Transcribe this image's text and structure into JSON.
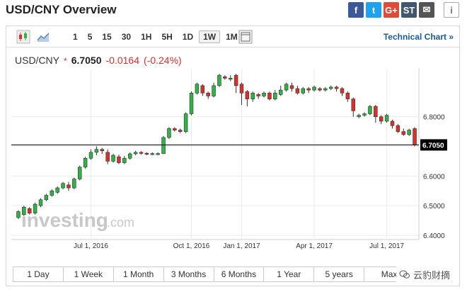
{
  "header": {
    "title": "USD/CNY Overview"
  },
  "share": [
    {
      "name": "facebook-icon",
      "glyph": "f",
      "color": "#3b5998"
    },
    {
      "name": "twitter-icon",
      "glyph": "t",
      "color": "#1da1f2"
    },
    {
      "name": "google-plus-icon",
      "glyph": "G+",
      "color": "#dd4b39"
    },
    {
      "name": "stocktwits-icon",
      "glyph": "ST",
      "color": "#40576d"
    },
    {
      "name": "email-icon",
      "glyph": "✉",
      "color": "#555555"
    },
    {
      "name": "info-icon",
      "glyph": "i",
      "color": "#777777"
    }
  ],
  "toolbar": {
    "periods": [
      "1",
      "5",
      "15",
      "30",
      "1H",
      "5H",
      "1D",
      "1W",
      "1M"
    ],
    "active_period": "1W",
    "technical_link": "Technical Chart »"
  },
  "quote": {
    "pair": "USD/CNY",
    "marker": "*",
    "price": "6.7050",
    "change": "-0.0164",
    "change_pct": "(-0.24%)"
  },
  "ranges": [
    "1 Day",
    "1 Week",
    "1 Month",
    "3 Months",
    "6 Months",
    "1 Year",
    "5 years",
    "Max"
  ],
  "watermark": {
    "text": "云豹财摘"
  },
  "logo": {
    "text": "investing",
    "suffix": ".com"
  },
  "colors": {
    "up": "#2fb344",
    "down": "#d9302c",
    "price_label_bg": "#000000"
  },
  "chart_data": {
    "type": "candlestick",
    "x_tick_labels": [
      "Jul 1, 2016",
      "Oct 1, 2016",
      "Jan 1, 2017",
      "Apr 1, 2017",
      "Jul 1, 2017"
    ],
    "y_tick_labels": [
      "6.8000",
      "6.7000",
      "6.6000",
      "6.5000",
      "6.4000"
    ],
    "ylim": [
      6.4,
      6.95
    ],
    "current_price": 6.705,
    "current_label": "6.7050",
    "candles": [
      [
        6.46,
        6.48,
        6.455,
        6.485
      ],
      [
        6.47,
        6.495,
        6.465,
        6.5
      ],
      [
        6.49,
        6.475,
        6.47,
        6.495
      ],
      [
        6.475,
        6.505,
        6.47,
        6.51
      ],
      [
        6.5,
        6.52,
        6.495,
        6.525
      ],
      [
        6.52,
        6.535,
        6.515,
        6.54
      ],
      [
        6.535,
        6.55,
        6.53,
        6.555
      ],
      [
        6.545,
        6.56,
        6.54,
        6.565
      ],
      [
        6.56,
        6.575,
        6.555,
        6.58
      ],
      [
        6.57,
        6.56,
        6.55,
        6.58
      ],
      [
        6.56,
        6.59,
        6.555,
        6.595
      ],
      [
        6.59,
        6.63,
        6.585,
        6.635
      ],
      [
        6.63,
        6.66,
        6.625,
        6.665
      ],
      [
        6.66,
        6.68,
        6.655,
        6.69
      ],
      [
        6.68,
        6.69,
        6.67,
        6.7
      ],
      [
        6.69,
        6.685,
        6.675,
        6.695
      ],
      [
        6.68,
        6.65,
        6.64,
        6.69
      ],
      [
        6.65,
        6.67,
        6.645,
        6.675
      ],
      [
        6.665,
        6.645,
        6.64,
        6.672
      ],
      [
        6.645,
        6.66,
        6.64,
        6.668
      ],
      [
        6.66,
        6.675,
        6.655,
        6.68
      ],
      [
        6.675,
        6.68,
        6.67,
        6.685
      ],
      [
        6.68,
        6.677,
        6.672,
        6.684
      ],
      [
        6.677,
        6.675,
        6.67,
        6.68
      ],
      [
        6.674,
        6.676,
        6.67,
        6.68
      ],
      [
        6.675,
        6.676,
        6.67,
        6.68
      ],
      [
        6.676,
        6.73,
        6.674,
        6.735
      ],
      [
        6.73,
        6.76,
        6.725,
        6.765
      ],
      [
        6.76,
        6.755,
        6.75,
        6.765
      ],
      [
        6.755,
        6.75,
        6.745,
        6.76
      ],
      [
        6.75,
        6.81,
        6.745,
        6.815
      ],
      [
        6.81,
        6.88,
        6.805,
        6.885
      ],
      [
        6.88,
        6.91,
        6.875,
        6.915
      ],
      [
        6.905,
        6.88,
        6.87,
        6.91
      ],
      [
        6.88,
        6.87,
        6.86,
        6.885
      ],
      [
        6.87,
        6.905,
        6.865,
        6.915
      ],
      [
        6.905,
        6.94,
        6.9,
        6.945
      ],
      [
        6.935,
        6.93,
        6.925,
        6.94
      ],
      [
        6.93,
        6.93,
        6.92,
        6.94
      ],
      [
        6.94,
        6.905,
        6.88,
        6.945
      ],
      [
        6.91,
        6.88,
        6.84,
        6.915
      ],
      [
        6.885,
        6.86,
        6.835,
        6.89
      ],
      [
        6.86,
        6.88,
        6.85,
        6.885
      ],
      [
        6.875,
        6.87,
        6.86,
        6.88
      ],
      [
        6.87,
        6.88,
        6.865,
        6.885
      ],
      [
        6.88,
        6.86,
        6.855,
        6.885
      ],
      [
        6.86,
        6.88,
        6.855,
        6.89
      ],
      [
        6.875,
        6.89,
        6.87,
        6.905
      ],
      [
        6.89,
        6.91,
        6.885,
        6.915
      ],
      [
        6.905,
        6.895,
        6.885,
        6.915
      ],
      [
        6.895,
        6.88,
        6.875,
        6.905
      ],
      [
        6.88,
        6.895,
        6.875,
        6.9
      ],
      [
        6.895,
        6.89,
        6.88,
        6.9
      ],
      [
        6.89,
        6.9,
        6.885,
        6.905
      ],
      [
        6.895,
        6.89,
        6.885,
        6.9
      ],
      [
        6.89,
        6.895,
        6.885,
        6.9
      ],
      [
        6.895,
        6.9,
        6.89,
        6.905
      ],
      [
        6.9,
        6.895,
        6.885,
        6.905
      ],
      [
        6.895,
        6.88,
        6.87,
        6.9
      ],
      [
        6.88,
        6.86,
        6.85,
        6.885
      ],
      [
        6.86,
        6.82,
        6.8,
        6.865
      ],
      [
        6.8,
        6.805,
        6.795,
        6.81
      ],
      [
        6.805,
        6.81,
        6.8,
        6.815
      ],
      [
        6.81,
        6.835,
        6.805,
        6.84
      ],
      [
        6.835,
        6.8,
        6.78,
        6.84
      ],
      [
        6.8,
        6.785,
        6.775,
        6.805
      ],
      [
        6.785,
        6.805,
        6.78,
        6.81
      ],
      [
        6.785,
        6.77,
        6.76,
        6.79
      ],
      [
        6.77,
        6.75,
        6.745,
        6.775
      ],
      [
        6.75,
        6.74,
        6.735,
        6.76
      ],
      [
        6.74,
        6.755,
        6.735,
        6.76
      ],
      [
        6.76,
        6.705,
        6.7,
        6.765
      ]
    ]
  }
}
